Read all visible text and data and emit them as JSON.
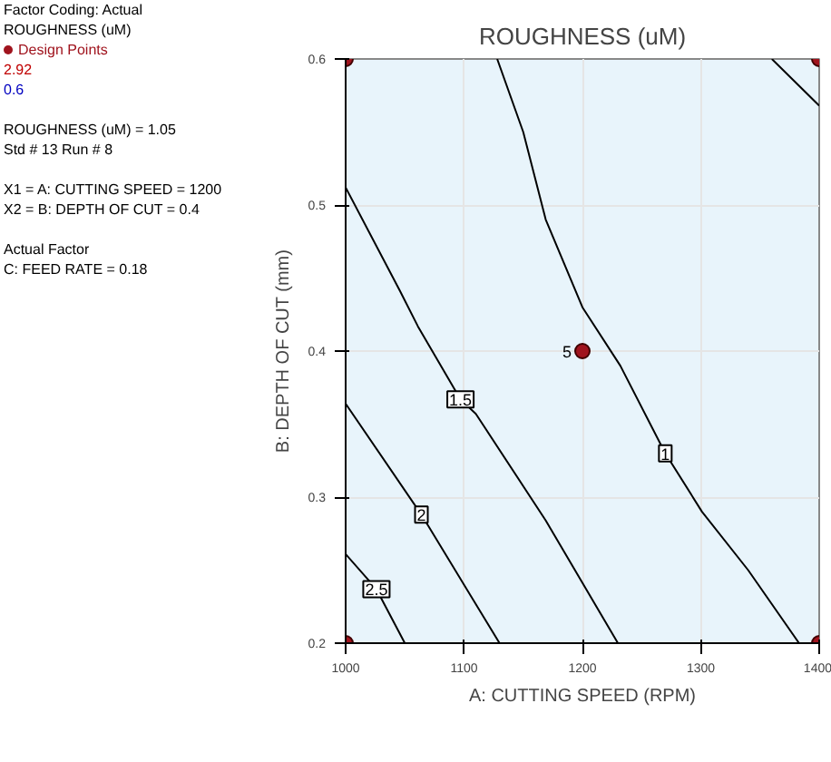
{
  "chart_data": {
    "type": "line",
    "title": "ROUGHNESS (uM)",
    "xlabel": "A: CUTTING SPEED (RPM)",
    "ylabel": "B: DEPTH OF CUT (mm)",
    "xlim": [
      1000,
      1400
    ],
    "ylim": [
      0.2,
      0.6
    ],
    "xticks": [
      1000,
      1100,
      1200,
      1300,
      1400
    ],
    "yticks": [
      0.2,
      0.3,
      0.4,
      0.5,
      0.6
    ],
    "grid": true,
    "legend": "top left",
    "series": [
      {
        "name": "1",
        "color": "#000000",
        "x": [
          1128,
          1150,
          1169,
          1200,
          1232,
          1270,
          1301,
          1340,
          1383,
          null,
          1360,
          1400
        ],
        "values": [
          0.6,
          0.55,
          0.49,
          0.43,
          0.39,
          0.33,
          0.29,
          0.25,
          0.2,
          null,
          0.6,
          0.568
        ]
      },
      {
        "name": "1.5",
        "color": "#000000",
        "x": [
          1000,
          1046,
          1061,
          1097,
          1110,
          1169,
          1230
        ],
        "values": [
          0.512,
          0.441,
          0.417,
          0.367,
          0.357,
          0.284,
          0.2
        ]
      },
      {
        "name": "2",
        "color": "#000000",
        "x": [
          1000,
          1064,
          1130
        ],
        "values": [
          0.364,
          0.288,
          0.2
        ]
      },
      {
        "name": "2.5",
        "color": "#000000",
        "x": [
          1000,
          1026,
          1050
        ],
        "values": [
          0.261,
          0.237,
          0.2
        ]
      },
      {
        "name": "Design Points",
        "type": "scatter",
        "marker": "circle",
        "color": "#a0141e",
        "x": [
          1000,
          1400,
          1000,
          1400,
          1200
        ],
        "values": [
          0.6,
          0.6,
          0.2,
          0.2,
          0.4
        ]
      }
    ],
    "annotations": [
      "Factor Coding: Actual",
      "ROUGHNESS (uM)",
      "2.92",
      "0.6",
      "ROUGHNESS (uM) = 1.05",
      "Std # 13 Run # 8",
      "X1 = A: CUTTING SPEED = 1200",
      "X2 = B: DEPTH OF CUT = 0.4",
      "Actual Factor",
      "C: FEED RATE = 0.18",
      {
        "text": "5",
        "x": 1200,
        "y": 0.4
      }
    ]
  }
}
